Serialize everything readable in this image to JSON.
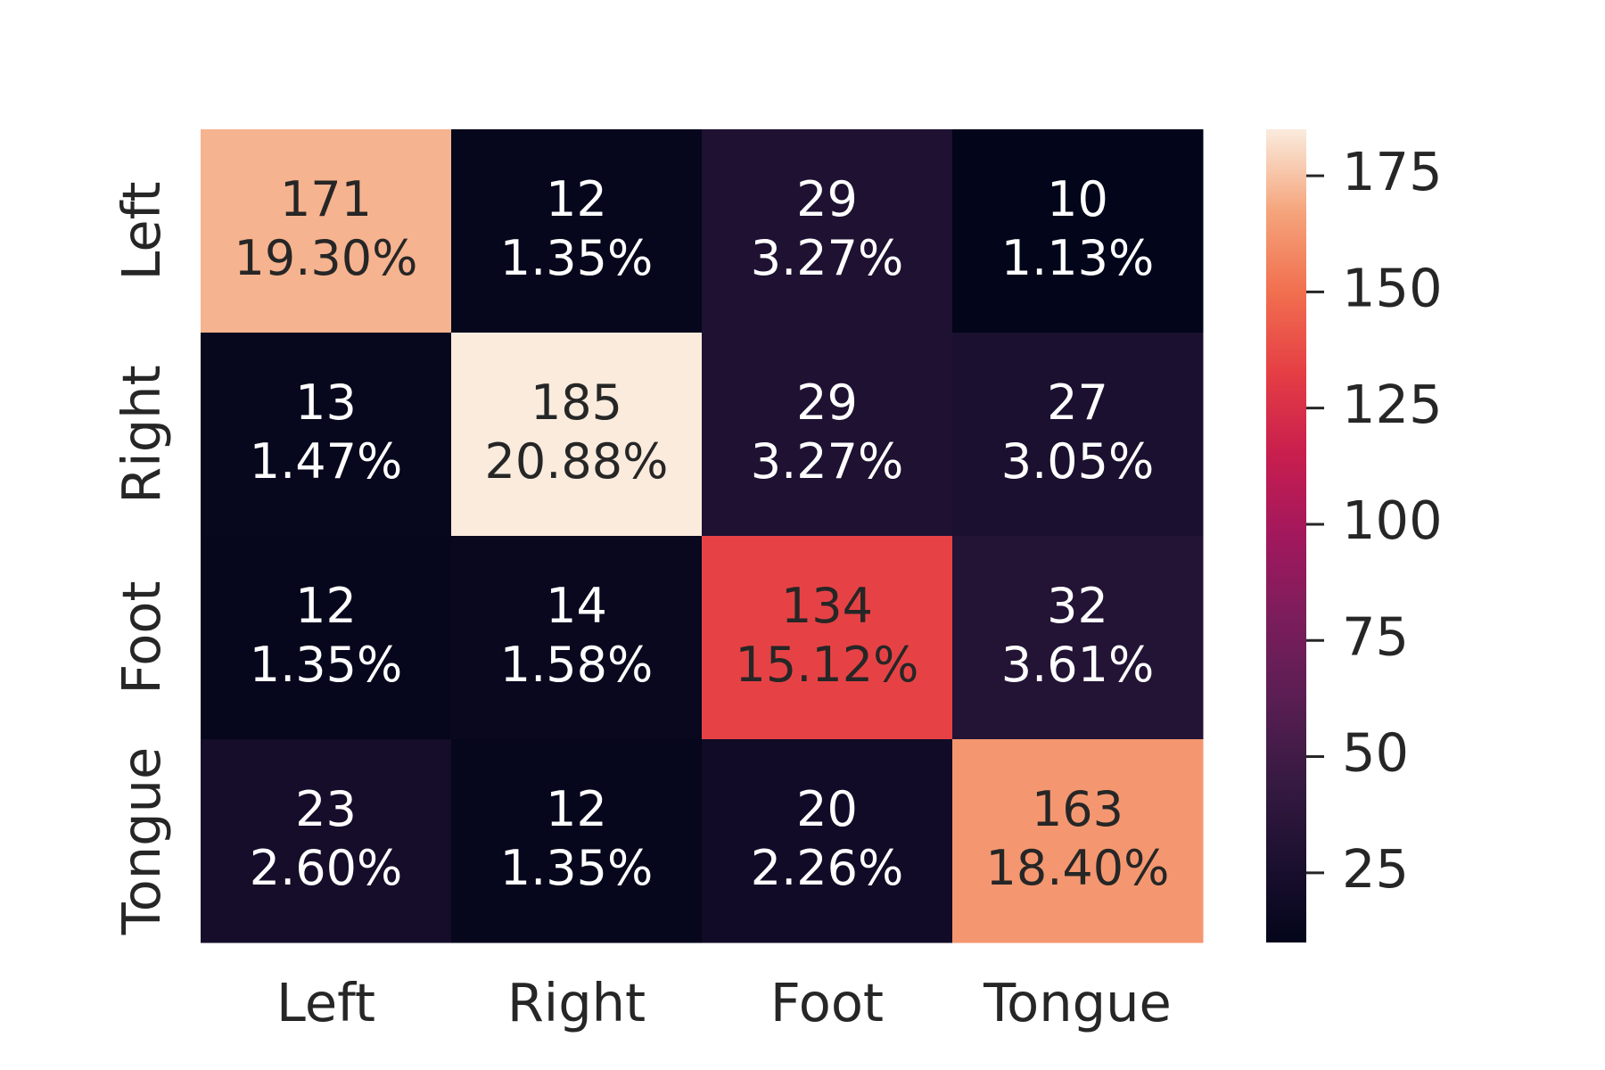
{
  "chart_data": {
    "type": "heatmap",
    "title": "",
    "xlabel": "",
    "ylabel": "",
    "rows": [
      "Left",
      "Right",
      "Foot",
      "Tongue"
    ],
    "columns": [
      "Left",
      "Right",
      "Foot",
      "Tongue"
    ],
    "values": [
      [
        171,
        12,
        29,
        10
      ],
      [
        13,
        185,
        29,
        27
      ],
      [
        12,
        14,
        134,
        32
      ],
      [
        23,
        12,
        20,
        163
      ]
    ],
    "percentages": [
      [
        "19.30%",
        "1.35%",
        "3.27%",
        "1.13%"
      ],
      [
        "1.47%",
        "20.88%",
        "3.27%",
        "3.05%"
      ],
      [
        "1.35%",
        "1.58%",
        "15.12%",
        "3.61%"
      ],
      [
        "2.60%",
        "1.35%",
        "2.26%",
        "18.40%"
      ]
    ],
    "colormap": "rocket",
    "colorbar": {
      "range": [
        10,
        185
      ],
      "ticks": [
        25,
        50,
        75,
        100,
        125,
        150,
        175
      ]
    },
    "text_colors": {
      "dark": "#262626",
      "light": "#ffffff"
    }
  }
}
